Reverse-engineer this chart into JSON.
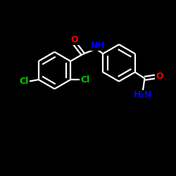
{
  "background_color": "#000000",
  "bond_color": "#ffffff",
  "atom_colors": {
    "O": "#ff0000",
    "N": "#0000ff",
    "Cl": "#00cc00",
    "C": "#ffffff",
    "H": "#ffffff"
  },
  "figsize": [
    2.5,
    2.5
  ],
  "dpi": 100,
  "xlim": [
    0,
    10
  ],
  "ylim": [
    0,
    10
  ]
}
